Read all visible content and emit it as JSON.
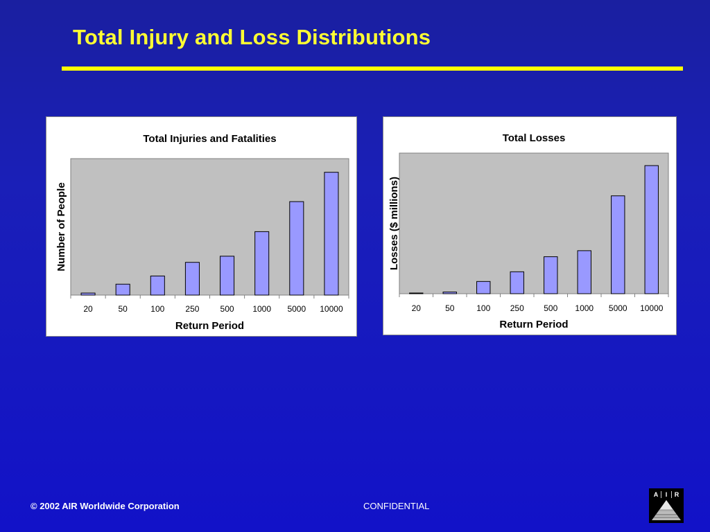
{
  "slide": {
    "title": "Total Injury and Loss Distributions"
  },
  "footer": {
    "copyright": "© 2002 AIR Worldwide Corporation",
    "confidential": "CONFIDENTIAL",
    "logo_text": "AIR"
  },
  "colors": {
    "background": "#1a1fb8",
    "title": "#ffff33",
    "rule": "#ffff00",
    "plot_area": "#c0c0c0",
    "bar_fill": "#9999ff",
    "bar_stroke": "#000000"
  },
  "chart_data": [
    {
      "type": "bar",
      "title": "Total Injuries and Fatalities",
      "xlabel": "Return Period",
      "ylabel": "Number of People",
      "categories": [
        "20",
        "50",
        "100",
        "250",
        "500",
        "1000",
        "5000",
        "10000"
      ],
      "values": [
        1.5,
        8,
        14,
        24,
        28.5,
        46.5,
        68.5,
        90
      ],
      "ylim": [
        0,
        100
      ],
      "y_ticks_labeled": false,
      "grid": false,
      "legend": "none"
    },
    {
      "type": "bar",
      "title": "Total Losses",
      "xlabel": "Return Period",
      "ylabel": "Losses ($ millions)",
      "categories": [
        "20",
        "50",
        "100",
        "250",
        "500",
        "1000",
        "5000",
        "10000"
      ],
      "values": [
        0.5,
        1.2,
        8.7,
        15.6,
        26.3,
        30.6,
        69.6,
        91.1
      ],
      "ylim": [
        0,
        100
      ],
      "y_ticks_labeled": false,
      "grid": false,
      "legend": "none"
    }
  ]
}
